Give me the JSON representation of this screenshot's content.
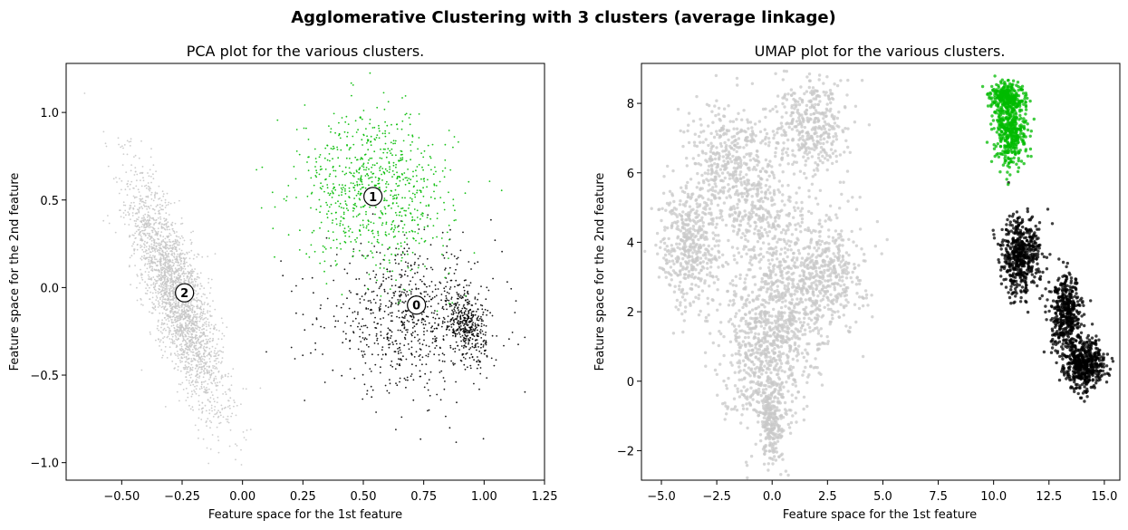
{
  "figure": {
    "suptitle": "Agglomerative Clustering with 3 clusters (average linkage)"
  },
  "chart_data": [
    {
      "type": "scatter",
      "title": "PCA plot for the various clusters.",
      "xlabel": "Feature space for the 1st feature",
      "ylabel": "Feature space for the 2nd feature",
      "xlim": [
        -0.73,
        1.25
      ],
      "ylim": [
        -1.1,
        1.28
      ],
      "xticks": [
        -0.5,
        -0.25,
        0.0,
        0.25,
        0.5,
        0.75,
        1.0,
        1.25
      ],
      "xtick_labels": [
        "−0.50",
        "−0.25",
        "0.00",
        "0.25",
        "0.50",
        "0.75",
        "1.00",
        "1.25"
      ],
      "yticks": [
        -1.0,
        -0.5,
        0.0,
        0.5,
        1.0
      ],
      "ytick_labels": [
        "−1.0",
        "−0.5",
        "0.0",
        "0.5",
        "1.0"
      ],
      "grid": false,
      "series": [
        {
          "cluster": 2,
          "color": "#c8c8c8",
          "count": 2600,
          "blobs": [
            {
              "w": 1.0,
              "cx": -0.27,
              "cy": -0.05,
              "sx": 0.095,
              "sy": 0.33,
              "rho": -0.8
            }
          ]
        },
        {
          "cluster": 0,
          "color": "#000000",
          "count": 1100,
          "blobs": [
            {
              "w": 0.7,
              "cx": 0.7,
              "cy": -0.18,
              "sx": 0.18,
              "sy": 0.2,
              "rho": 0.0
            },
            {
              "w": 0.3,
              "cx": 0.93,
              "cy": -0.22,
              "sx": 0.04,
              "sy": 0.1,
              "rho": -0.3
            }
          ]
        },
        {
          "cluster": 1,
          "color": "#00bb00",
          "count": 800,
          "blobs": [
            {
              "w": 1.0,
              "cx": 0.55,
              "cy": 0.55,
              "sx": 0.16,
              "sy": 0.22,
              "rho": -0.1
            }
          ]
        }
      ],
      "centers": [
        {
          "label": "0",
          "x": 0.72,
          "y": -0.1
        },
        {
          "label": "1",
          "x": 0.54,
          "y": 0.52
        },
        {
          "label": "2",
          "x": -0.24,
          "y": -0.03
        }
      ]
    },
    {
      "type": "scatter",
      "title": "UMAP plot for the various clusters.",
      "xlabel": "Feature space for the 1st feature",
      "ylabel": "Feature space for the 2nd feature",
      "xlim": [
        -5.9,
        15.7
      ],
      "ylim": [
        -2.85,
        9.15
      ],
      "xticks": [
        -5.0,
        -2.5,
        0.0,
        2.5,
        5.0,
        7.5,
        10.0,
        12.5,
        15.0
      ],
      "xtick_labels": [
        "−5.0",
        "−2.5",
        "0.0",
        "2.5",
        "5.0",
        "7.5",
        "10.0",
        "12.5",
        "15.0"
      ],
      "yticks": [
        -2,
        0,
        2,
        4,
        6,
        8
      ],
      "ytick_labels": [
        "−2",
        "0",
        "2",
        "4",
        "6",
        "8"
      ],
      "grid": false,
      "series": [
        {
          "cluster": 2,
          "color": "#c8c8c8",
          "count": 3200,
          "blobs": [
            {
              "w": 0.2,
              "cx": 0.2,
              "cy": 2.0,
              "sx": 1.1,
              "sy": 1.2,
              "rho": 0.0
            },
            {
              "w": 0.12,
              "cx": -0.5,
              "cy": 0.4,
              "sx": 0.9,
              "sy": 0.9,
              "rho": 0.0
            },
            {
              "w": 0.14,
              "cx": -3.7,
              "cy": 3.9,
              "sx": 0.7,
              "sy": 0.9,
              "rho": 0.0
            },
            {
              "w": 0.16,
              "cx": -1.6,
              "cy": 6.2,
              "sx": 1.1,
              "sy": 0.9,
              "rho": 0.0
            },
            {
              "w": 0.12,
              "cx": 1.8,
              "cy": 7.3,
              "sx": 0.8,
              "sy": 0.7,
              "rho": 0.0
            },
            {
              "w": 0.14,
              "cx": 2.4,
              "cy": 3.2,
              "sx": 0.9,
              "sy": 0.8,
              "rho": 0.0
            },
            {
              "w": 0.07,
              "cx": 0.0,
              "cy": -1.2,
              "sx": 0.3,
              "sy": 0.6,
              "rho": 0.0
            },
            {
              "w": 0.05,
              "cx": -0.3,
              "cy": 4.5,
              "sx": 0.8,
              "sy": 0.5,
              "rho": 0.0
            }
          ]
        },
        {
          "cluster": 0,
          "color": "#000000",
          "count": 1500,
          "blobs": [
            {
              "w": 0.35,
              "cx": 11.2,
              "cy": 3.6,
              "sx": 0.45,
              "sy": 0.55,
              "rho": 0.0
            },
            {
              "w": 0.3,
              "cx": 13.3,
              "cy": 1.9,
              "sx": 0.35,
              "sy": 0.55,
              "rho": 0.0
            },
            {
              "w": 0.35,
              "cx": 14.1,
              "cy": 0.5,
              "sx": 0.45,
              "sy": 0.35,
              "rho": 0.0
            }
          ]
        },
        {
          "cluster": 1,
          "color": "#00bb00",
          "count": 700,
          "blobs": [
            {
              "w": 0.6,
              "cx": 10.8,
              "cy": 7.2,
              "sx": 0.35,
              "sy": 0.5,
              "rho": 0.0
            },
            {
              "w": 0.4,
              "cx": 10.6,
              "cy": 8.2,
              "sx": 0.35,
              "sy": 0.2,
              "rho": 0.0
            }
          ]
        }
      ],
      "centers": []
    }
  ]
}
